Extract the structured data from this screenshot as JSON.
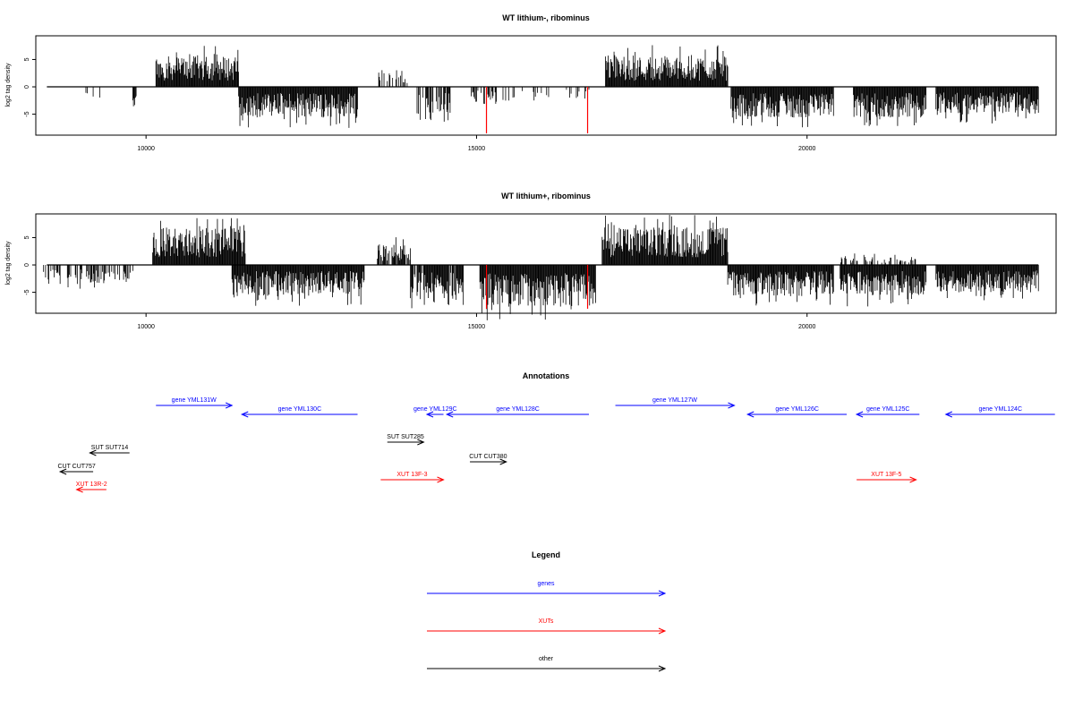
{
  "chart_data": [
    {
      "type": "bar",
      "title": "WT lithium-, ribominus",
      "xlabel": "",
      "ylabel": "log2 tag density",
      "xlim": [
        8400,
        23700
      ],
      "ylim": [
        -8.5,
        9
      ],
      "x_ticks": [
        10000,
        15000,
        20000
      ],
      "y_ticks": [
        5,
        0,
        -5
      ],
      "grid": false,
      "regions": [
        {
          "start": 8500,
          "end": 9400,
          "sign": -1,
          "amp": 2.2,
          "density": 0.06
        },
        {
          "start": 9800,
          "end": 9850,
          "sign": -1,
          "amp": 3,
          "density": 1
        },
        {
          "start": 10150,
          "end": 11400,
          "sign": 1,
          "amp": 4.5,
          "density": 1
        },
        {
          "start": 11400,
          "end": 13200,
          "sign": -1,
          "amp": 4.5,
          "density": 1
        },
        {
          "start": 13500,
          "end": 13950,
          "sign": 1,
          "amp": 2.5,
          "density": 0.4
        },
        {
          "start": 14100,
          "end": 14600,
          "sign": -1,
          "amp": 4,
          "density": 0.6
        },
        {
          "start": 14900,
          "end": 15300,
          "sign": -1,
          "amp": 2.5,
          "density": 0.5
        },
        {
          "start": 15400,
          "end": 16700,
          "sign": -1,
          "amp": 2,
          "density": 0.25
        },
        {
          "start": 16950,
          "end": 18800,
          "sign": 1,
          "amp": 4.5,
          "density": 1
        },
        {
          "start": 18850,
          "end": 20400,
          "sign": -1,
          "amp": 4.5,
          "density": 1
        },
        {
          "start": 20700,
          "end": 21800,
          "sign": -1,
          "amp": 4.5,
          "density": 1
        },
        {
          "start": 21950,
          "end": 23500,
          "sign": -1,
          "amp": 4,
          "density": 1
        }
      ],
      "highlights": [
        {
          "x": 15150,
          "value": -8.5,
          "color": "#ff0000"
        },
        {
          "x": 16680,
          "value": -8.5,
          "color": "#ff0000"
        }
      ]
    },
    {
      "type": "bar",
      "title": "WT lithium+, ribominus",
      "xlabel": "",
      "ylabel": "log2 tag density",
      "xlim": [
        8400,
        23700
      ],
      "ylim": [
        -8.5,
        9
      ],
      "x_ticks": [
        10000,
        15000,
        20000
      ],
      "y_ticks": [
        5,
        0,
        -5
      ],
      "grid": false,
      "regions": [
        {
          "start": 8450,
          "end": 9800,
          "sign": -1,
          "amp": 2.8,
          "density": 0.5
        },
        {
          "start": 10100,
          "end": 11500,
          "sign": 1,
          "amp": 5.5,
          "density": 1
        },
        {
          "start": 11300,
          "end": 13300,
          "sign": -1,
          "amp": 4.5,
          "density": 1
        },
        {
          "start": 13500,
          "end": 14000,
          "sign": 1,
          "amp": 3,
          "density": 0.8
        },
        {
          "start": 14000,
          "end": 14800,
          "sign": -1,
          "amp": 5,
          "density": 0.9
        },
        {
          "start": 15050,
          "end": 16800,
          "sign": -1,
          "amp": 6,
          "density": 1
        },
        {
          "start": 16900,
          "end": 18800,
          "sign": 1,
          "amp": 5.5,
          "density": 1
        },
        {
          "start": 18800,
          "end": 20400,
          "sign": -1,
          "amp": 4.5,
          "density": 1
        },
        {
          "start": 20500,
          "end": 21700,
          "sign": 1,
          "amp": 1.5,
          "density": 0.3
        },
        {
          "start": 20500,
          "end": 21800,
          "sign": -1,
          "amp": 4.5,
          "density": 1
        },
        {
          "start": 21950,
          "end": 23500,
          "sign": -1,
          "amp": 4,
          "density": 1
        }
      ],
      "highlights": [
        {
          "x": 15150,
          "value": -8,
          "color": "#ff0000"
        },
        {
          "x": 16680,
          "value": -8,
          "color": "#ff0000"
        }
      ]
    }
  ],
  "annotations": {
    "title": "Annotations",
    "xlim": [
      8400,
      23700
    ],
    "items": [
      {
        "label": "gene YML131W",
        "type": "gene",
        "start": 10150,
        "end": 11300,
        "strand": "+",
        "row": 0
      },
      {
        "label": "gene YML130C",
        "type": "gene",
        "start": 11450,
        "end": 13200,
        "strand": "-",
        "row": 1
      },
      {
        "label": "gene YML129C",
        "type": "gene",
        "start": 14250,
        "end": 14500,
        "strand": "-",
        "row": 1
      },
      {
        "label": "gene YML128C",
        "type": "gene",
        "start": 14550,
        "end": 16700,
        "strand": "-",
        "row": 1
      },
      {
        "label": "gene YML127W",
        "type": "gene",
        "start": 17100,
        "end": 18900,
        "strand": "+",
        "row": 0
      },
      {
        "label": "gene YML126C",
        "type": "gene",
        "start": 19100,
        "end": 20600,
        "strand": "-",
        "row": 1
      },
      {
        "label": "gene YML125C",
        "type": "gene",
        "start": 20750,
        "end": 21700,
        "strand": "-",
        "row": 1
      },
      {
        "label": "gene YML124C",
        "type": "gene",
        "start": 22100,
        "end": 23750,
        "strand": "-",
        "row": 1
      },
      {
        "label": "SUT SUT714",
        "type": "other",
        "start": 9150,
        "end": 9750,
        "strand": "-",
        "row": 2
      },
      {
        "label": "SUT SUT285",
        "type": "other",
        "start": 13650,
        "end": 14200,
        "strand": "+",
        "row": 3
      },
      {
        "label": "CUT CUT380",
        "type": "other",
        "start": 14900,
        "end": 15450,
        "strand": "+",
        "row": 4
      },
      {
        "label": "CUT CUT757",
        "type": "other",
        "start": 8700,
        "end": 9200,
        "strand": "-",
        "row": 5
      },
      {
        "label": "XUT 13R-2",
        "type": "xut",
        "start": 8950,
        "end": 9400,
        "strand": "-",
        "row": 6
      },
      {
        "label": "XUT 13F-3",
        "type": "xut",
        "start": 13550,
        "end": 14500,
        "strand": "+",
        "row": 7
      },
      {
        "label": "XUT 13F-5",
        "type": "xut",
        "start": 20750,
        "end": 21650,
        "strand": "+",
        "row": 7
      }
    ]
  },
  "legend": {
    "title": "Legend",
    "entries": [
      {
        "label": "genes",
        "color": "#0000ff"
      },
      {
        "label": "XUTs",
        "color": "#ff0000"
      },
      {
        "label": "other",
        "color": "#000000"
      }
    ]
  },
  "colors": {
    "gene": "#0000ff",
    "xut": "#ff0000",
    "other": "#000000"
  }
}
